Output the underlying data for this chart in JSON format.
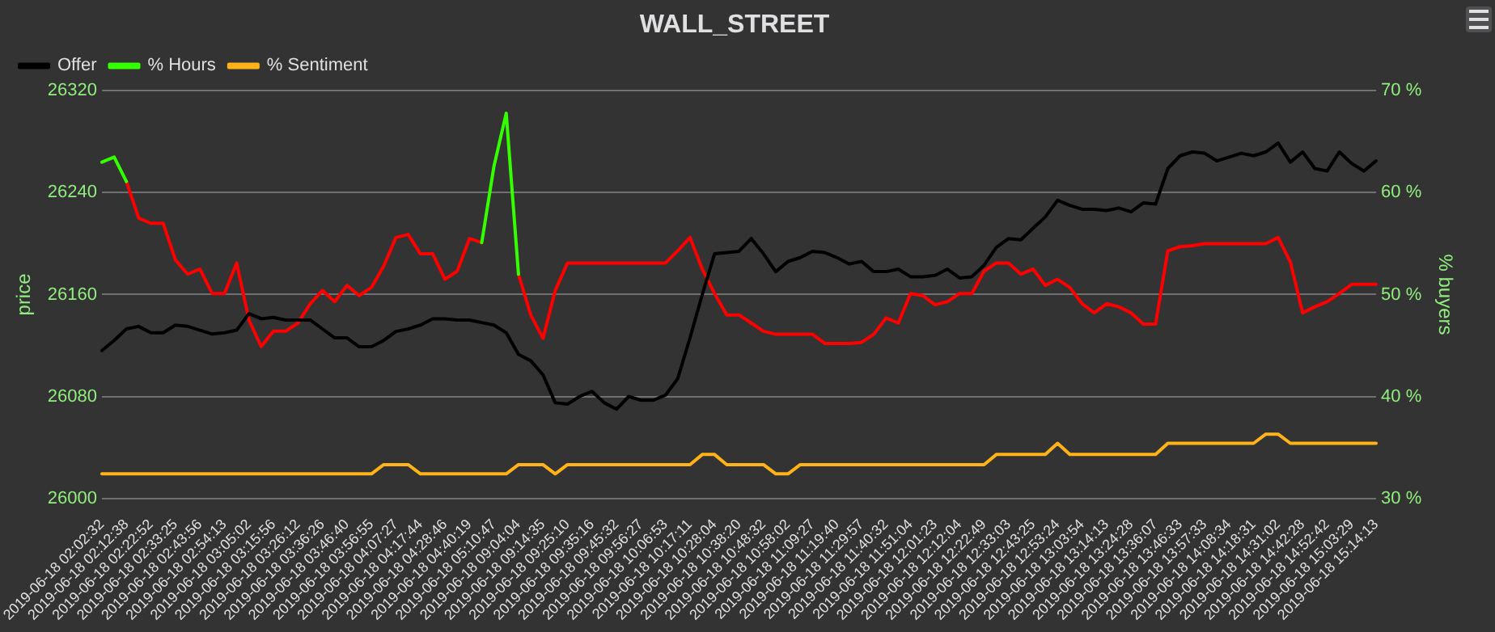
{
  "chart_data": {
    "type": "line",
    "title": "WALL_STREET",
    "ylabel": "price",
    "y2label": "% buyers",
    "categories": [
      "2019-06-18 02:02:32",
      null,
      "2019-06-18 02:12:38",
      null,
      "2019-06-18 02:22:52",
      null,
      "2019-06-18 02:33:25",
      null,
      "2019-06-18 02:43:56",
      null,
      "2019-06-18 02:54:13",
      null,
      "2019-06-18 03:05:02",
      null,
      "2019-06-18 03:15:56",
      null,
      "2019-06-18 03:26:12",
      null,
      "2019-06-18 03:36:26",
      null,
      "2019-06-18 03:46:40",
      null,
      "2019-06-18 03:56:55",
      null,
      "2019-06-18 04:07:27",
      null,
      "2019-06-18 04:17:44",
      null,
      "2019-06-18 04:28:46",
      null,
      "2019-06-18 04:40:19",
      null,
      "2019-06-18 05:10:47",
      null,
      "2019-06-18 09:04:04",
      null,
      "2019-06-18 09:14:35",
      null,
      "2019-06-18 09:25:10",
      null,
      "2019-06-18 09:35:16",
      null,
      "2019-06-18 09:45:32",
      null,
      "2019-06-18 09:56:27",
      null,
      "2019-06-18 10:06:53",
      null,
      "2019-06-18 10:17:11",
      null,
      "2019-06-18 10:28:04",
      null,
      "2019-06-18 10:38:20",
      null,
      "2019-06-18 10:48:32",
      null,
      "2019-06-18 10:58:02",
      null,
      "2019-06-18 11:09:27",
      null,
      "2019-06-18 11:19:40",
      null,
      "2019-06-18 11:29:57",
      null,
      "2019-06-18 11:40:32",
      null,
      "2019-06-18 11:51:04",
      null,
      "2019-06-18 12:01:23",
      null,
      "2019-06-18 12:12:04",
      null,
      "2019-06-18 12:22:49",
      null,
      "2019-06-18 12:33:03",
      null,
      "2019-06-18 12:43:25",
      null,
      "2019-06-18 12:53:24",
      null,
      "2019-06-18 13:03:54",
      null,
      "2019-06-18 13:14:13",
      null,
      "2019-06-18 13:24:28",
      null,
      "2019-06-18 13:36:07",
      null,
      "2019-06-18 13:46:33",
      null,
      "2019-06-18 13:57:33",
      null,
      "2019-06-18 14:08:34",
      null,
      "2019-06-18 14:18:31",
      null,
      "2019-06-18 14:31:02",
      null,
      "2019-06-18 14:42:28",
      null,
      "2019-06-18 14:52:42",
      null,
      "2019-06-18 15:03:29",
      null,
      "2019-06-18 15:14:13"
    ],
    "series": [
      {
        "name": "Offer",
        "color": "#000000",
        "values": [
          26116,
          26124,
          26133,
          26135,
          26130,
          26130,
          26136,
          26135,
          26132,
          26129,
          26130,
          26132,
          26145,
          26141,
          26142,
          26140,
          26140,
          26140,
          26133,
          26126,
          26126,
          26119,
          26119,
          26124,
          26131,
          26133,
          26136,
          26141,
          26141,
          26140,
          26140,
          26138,
          26136,
          26130,
          26113,
          26108,
          26097,
          26075,
          26074,
          26080,
          26084,
          26075,
          26070,
          26080,
          26077,
          26077,
          26081,
          26094,
          26126,
          26160,
          26192,
          26193,
          26194,
          26204,
          26192,
          26178,
          26186,
          26189,
          26194,
          26193,
          26189,
          26184,
          26186,
          26178,
          26178,
          26180,
          26174,
          26174,
          26175,
          26180,
          26173,
          26174,
          26183,
          26197,
          26204,
          26203,
          26212,
          26221,
          26234,
          26230,
          26227,
          26227,
          26226,
          26228,
          26225,
          26232,
          26231,
          26259,
          26269,
          26272,
          26271,
          26265,
          26268,
          26271,
          26269,
          26272,
          26279,
          26264,
          26272,
          26259,
          26257,
          26272,
          26263,
          26257,
          26265
        ]
      },
      {
        "name": "% Hours",
        "color": "#33ff00",
        "axis": "y2",
        "values": [
          63.0,
          63.5,
          61.1,
          null,
          null,
          null,
          null,
          null,
          null,
          null,
          null,
          null,
          null,
          null,
          null,
          null,
          null,
          null,
          null,
          null,
          null,
          null,
          null,
          null,
          null,
          null,
          null,
          null,
          null,
          null,
          null,
          55.1,
          62.6,
          67.8,
          52.0,
          null,
          null,
          null,
          null,
          null,
          null,
          null,
          null,
          null,
          null,
          null,
          null,
          null,
          null,
          null,
          null,
          null,
          null,
          null,
          null,
          null,
          null,
          null,
          null,
          null,
          null,
          null,
          null,
          null,
          null,
          null,
          null,
          null,
          null,
          null,
          null,
          null,
          null,
          null,
          null,
          null,
          null,
          null,
          null,
          null,
          null,
          null,
          null,
          null,
          null,
          null,
          null,
          null,
          null,
          null,
          null,
          null,
          null,
          null,
          null,
          null,
          null,
          null,
          null,
          null,
          null,
          null,
          null,
          null,
          null
        ]
      },
      {
        "color": "#ff0000",
        "axis": "y2",
        "values": [
          null,
          null,
          61.1,
          57.5,
          57.0,
          57.0,
          53.4,
          52.0,
          52.5,
          50.1,
          50.1,
          53.1,
          47.5,
          44.9,
          46.4,
          46.4,
          47.2,
          49.1,
          50.4,
          49.3,
          50.9,
          49.9,
          50.7,
          52.8,
          55.6,
          55.9,
          54.0,
          54.0,
          51.5,
          52.3,
          55.5,
          55.1,
          null,
          null,
          52.0,
          48.0,
          45.7,
          50.4,
          53.1,
          53.1,
          53.1,
          53.1,
          53.1,
          53.1,
          53.1,
          53.1,
          53.1,
          54.3,
          55.6,
          52.5,
          50.1,
          48.0,
          48.0,
          47.2,
          46.4,
          46.1,
          46.1,
          46.1,
          46.1,
          45.2,
          45.2,
          45.2,
          45.3,
          46.1,
          47.7,
          47.2,
          50.1,
          49.9,
          49.0,
          49.3,
          50.1,
          50.1,
          52.3,
          53.1,
          53.1,
          52.0,
          52.5,
          50.9,
          51.5,
          50.7,
          49.1,
          48.2,
          49.1,
          48.8,
          48.2,
          47.1,
          47.1,
          54.3,
          54.7,
          54.8,
          55.0,
          55.0,
          55.0,
          55.0,
          55.0,
          55.0,
          55.6,
          53.2,
          48.2,
          48.8,
          49.3,
          50.1,
          51.0,
          51.0,
          51.0
        ]
      },
      {
        "name": "% Sentiment",
        "color": "#ffb319",
        "axis": "y2",
        "values": [
          32.4,
          32.4,
          32.4,
          32.4,
          32.4,
          32.4,
          32.4,
          32.4,
          32.4,
          32.4,
          32.4,
          32.4,
          32.4,
          32.4,
          32.4,
          32.4,
          32.4,
          32.4,
          32.4,
          32.4,
          32.4,
          32.4,
          32.4,
          33.3,
          33.3,
          33.3,
          32.4,
          32.4,
          32.4,
          32.4,
          32.4,
          32.4,
          32.4,
          32.4,
          33.3,
          33.3,
          33.3,
          32.4,
          33.3,
          33.3,
          33.3,
          33.3,
          33.3,
          33.3,
          33.3,
          33.3,
          33.3,
          33.3,
          33.3,
          34.3,
          34.3,
          33.3,
          33.3,
          33.3,
          33.3,
          32.4,
          32.4,
          33.3,
          33.3,
          33.3,
          33.3,
          33.3,
          33.3,
          33.3,
          33.3,
          33.3,
          33.3,
          33.3,
          33.3,
          33.3,
          33.3,
          33.3,
          33.3,
          34.3,
          34.3,
          34.3,
          34.3,
          34.3,
          35.4,
          34.3,
          34.3,
          34.3,
          34.3,
          34.3,
          34.3,
          34.3,
          34.3,
          35.4,
          35.4,
          35.4,
          35.4,
          35.4,
          35.4,
          35.4,
          35.4,
          36.3,
          36.3,
          35.4,
          35.4,
          35.4,
          35.4,
          35.4,
          35.4,
          35.4,
          35.4
        ]
      }
    ],
    "ylim": [
      26000,
      26320
    ],
    "yticks": [
      26000,
      26080,
      26160,
      26240,
      26320
    ],
    "y2lim": [
      30,
      70
    ],
    "y2ticks": [
      {
        "value": 30,
        "label": "30 %"
      },
      {
        "value": 40,
        "label": "40 %"
      },
      {
        "value": 50,
        "label": "50 %"
      },
      {
        "value": 60,
        "label": "60 %"
      },
      {
        "value": 70,
        "label": "70 %"
      }
    ],
    "grid": "y",
    "legend": "top left",
    "marker": "none",
    "line_style": "solid"
  }
}
